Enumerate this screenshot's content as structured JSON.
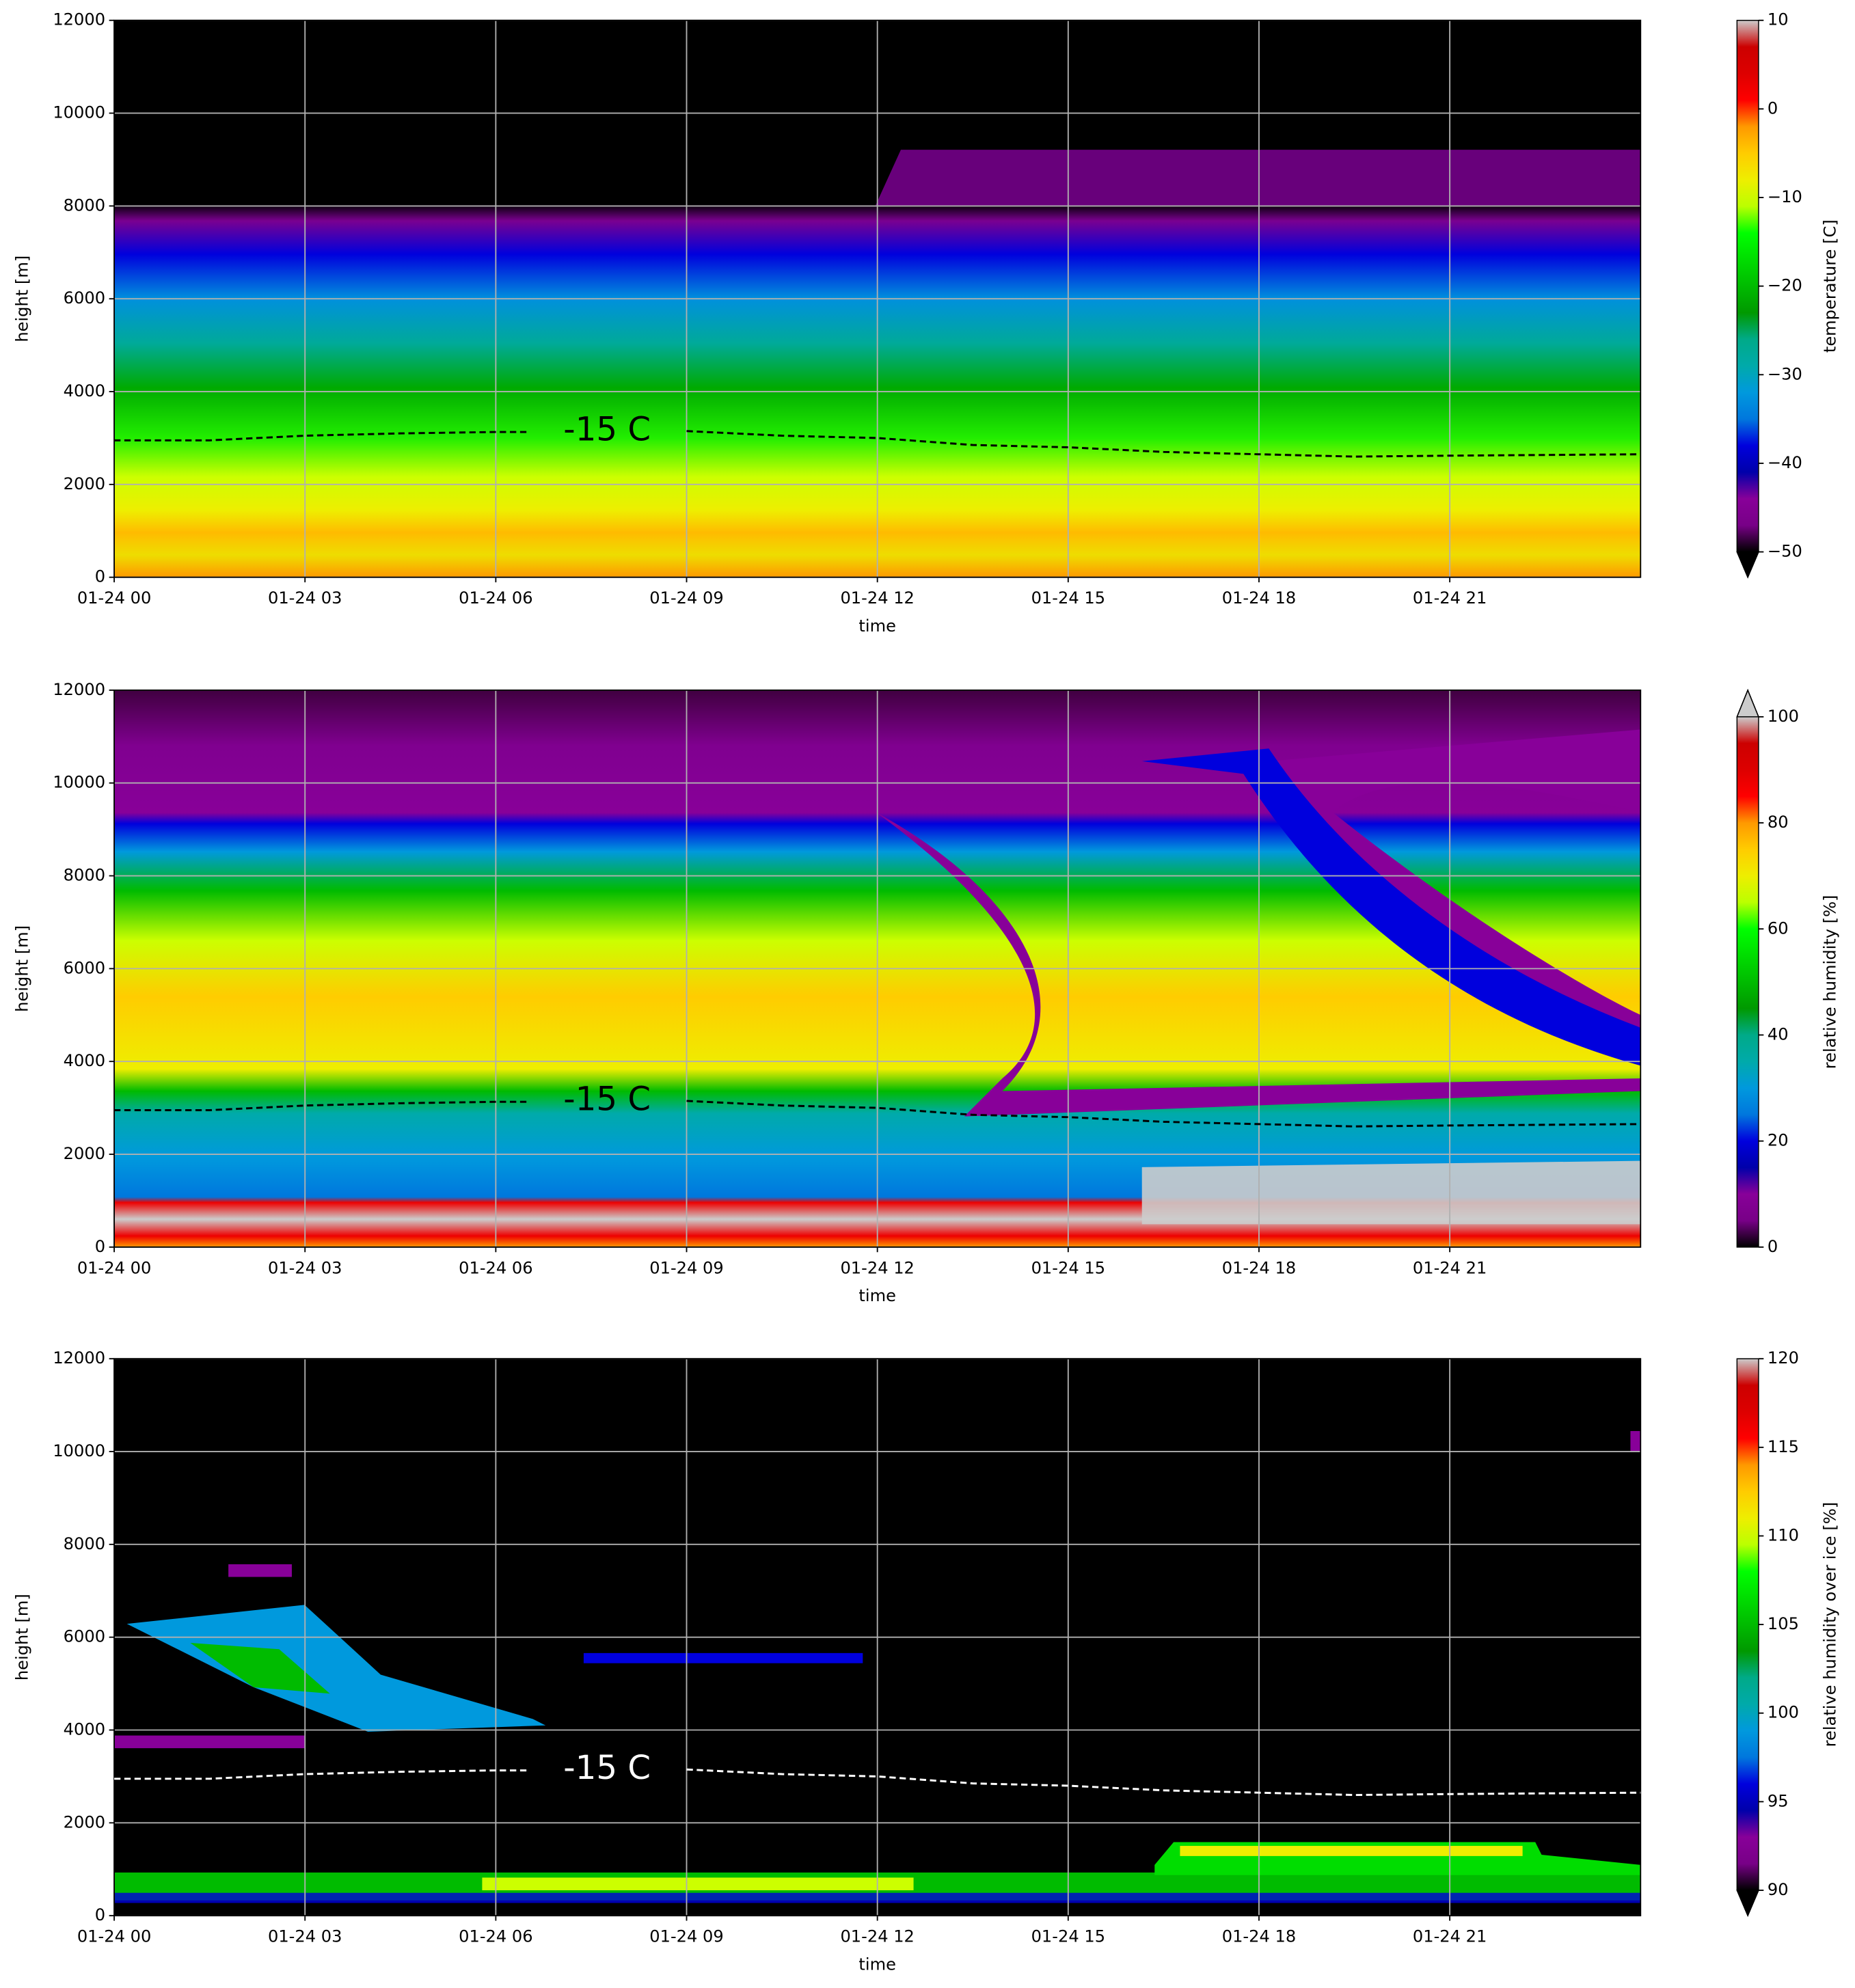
{
  "chart_data": [
    {
      "type": "heatmap",
      "xlabel": "time",
      "ylabel": "height [m]",
      "xlim": [
        0,
        24
      ],
      "xticks": [
        {
          "value": 0,
          "label": "01-24 00"
        },
        {
          "value": 3,
          "label": "01-24 03"
        },
        {
          "value": 6,
          "label": "01-24 06"
        },
        {
          "value": 9,
          "label": "01-24 09"
        },
        {
          "value": 12,
          "label": "01-24 12"
        },
        {
          "value": 15,
          "label": "01-24 15"
        },
        {
          "value": 18,
          "label": "01-24 18"
        },
        {
          "value": 21,
          "label": "01-24 21"
        }
      ],
      "ylim": [
        0,
        12000
      ],
      "yticks": [
        0,
        2000,
        4000,
        6000,
        8000,
        10000,
        12000
      ],
      "grid": true,
      "contour": {
        "label": "-15 C",
        "color": "#000000",
        "x": [
          0,
          1.5,
          3,
          4.5,
          6,
          6.5,
          8.3,
          9,
          10.5,
          12,
          13.5,
          15,
          16.5,
          18,
          19.5,
          21,
          24
        ],
        "y": [
          2950,
          2950,
          3050,
          3100,
          3130,
          3130,
          null,
          3150,
          3050,
          3000,
          2850,
          2800,
          2700,
          2650,
          2600,
          2620,
          2650
        ]
      },
      "colorbar": {
        "label": "temperature [C]",
        "lim": [
          -50,
          10
        ],
        "extend": "min",
        "ticks": [
          10,
          0,
          {
            "value": -10,
            "label": "−10"
          },
          {
            "value": -20,
            "label": "−20"
          },
          {
            "value": -30,
            "label": "−30"
          },
          {
            "value": -40,
            "label": "−40"
          },
          {
            "value": -50,
            "label": "−50"
          }
        ]
      }
    },
    {
      "type": "heatmap",
      "xlabel": "time",
      "ylabel": "height [m]",
      "xlim": [
        0,
        24
      ],
      "xticks": [
        {
          "value": 0,
          "label": "01-24 00"
        },
        {
          "value": 3,
          "label": "01-24 03"
        },
        {
          "value": 6,
          "label": "01-24 06"
        },
        {
          "value": 9,
          "label": "01-24 09"
        },
        {
          "value": 12,
          "label": "01-24 12"
        },
        {
          "value": 15,
          "label": "01-24 15"
        },
        {
          "value": 18,
          "label": "01-24 18"
        },
        {
          "value": 21,
          "label": "01-24 21"
        }
      ],
      "ylim": [
        0,
        12000
      ],
      "yticks": [
        0,
        2000,
        4000,
        6000,
        8000,
        10000,
        12000
      ],
      "grid": true,
      "contour": {
        "label": "-15 C",
        "color": "#000000",
        "x": [
          0,
          1.5,
          3,
          4.5,
          6,
          6.5,
          8.3,
          9,
          10.5,
          12,
          13.5,
          15,
          16.5,
          18,
          19.5,
          21,
          24
        ],
        "y": [
          2950,
          2950,
          3050,
          3100,
          3130,
          3130,
          null,
          3150,
          3050,
          3000,
          2850,
          2800,
          2700,
          2650,
          2600,
          2620,
          2650
        ]
      },
      "colorbar": {
        "label": "relative humidity [%]",
        "lim": [
          0,
          100
        ],
        "extend": "max",
        "ticks": [
          100,
          80,
          60,
          40,
          20,
          0
        ]
      }
    },
    {
      "type": "heatmap",
      "xlabel": "time",
      "ylabel": "height [m]",
      "xlim": [
        0,
        24
      ],
      "xticks": [
        {
          "value": 0,
          "label": "01-24 00"
        },
        {
          "value": 3,
          "label": "01-24 03"
        },
        {
          "value": 6,
          "label": "01-24 06"
        },
        {
          "value": 9,
          "label": "01-24 09"
        },
        {
          "value": 12,
          "label": "01-24 12"
        },
        {
          "value": 15,
          "label": "01-24 15"
        },
        {
          "value": 18,
          "label": "01-24 18"
        },
        {
          "value": 21,
          "label": "01-24 21"
        }
      ],
      "ylim": [
        0,
        12000
      ],
      "yticks": [
        0,
        2000,
        4000,
        6000,
        8000,
        10000,
        12000
      ],
      "grid": true,
      "contour": {
        "label": "-15 C",
        "color": "#ffffff",
        "x": [
          0,
          1.5,
          3,
          4.5,
          6,
          6.5,
          8.3,
          9,
          10.5,
          12,
          13.5,
          15,
          16.5,
          18,
          19.5,
          21,
          24
        ],
        "y": [
          2950,
          2950,
          3050,
          3100,
          3130,
          3130,
          null,
          3150,
          3050,
          3000,
          2850,
          2800,
          2700,
          2650,
          2600,
          2620,
          2650
        ]
      },
      "colorbar": {
        "label": "relative humidity over ice [%]",
        "lim": [
          90,
          120
        ],
        "extend": "min",
        "ticks": [
          120,
          115,
          110,
          105,
          100,
          95,
          90
        ]
      }
    }
  ]
}
